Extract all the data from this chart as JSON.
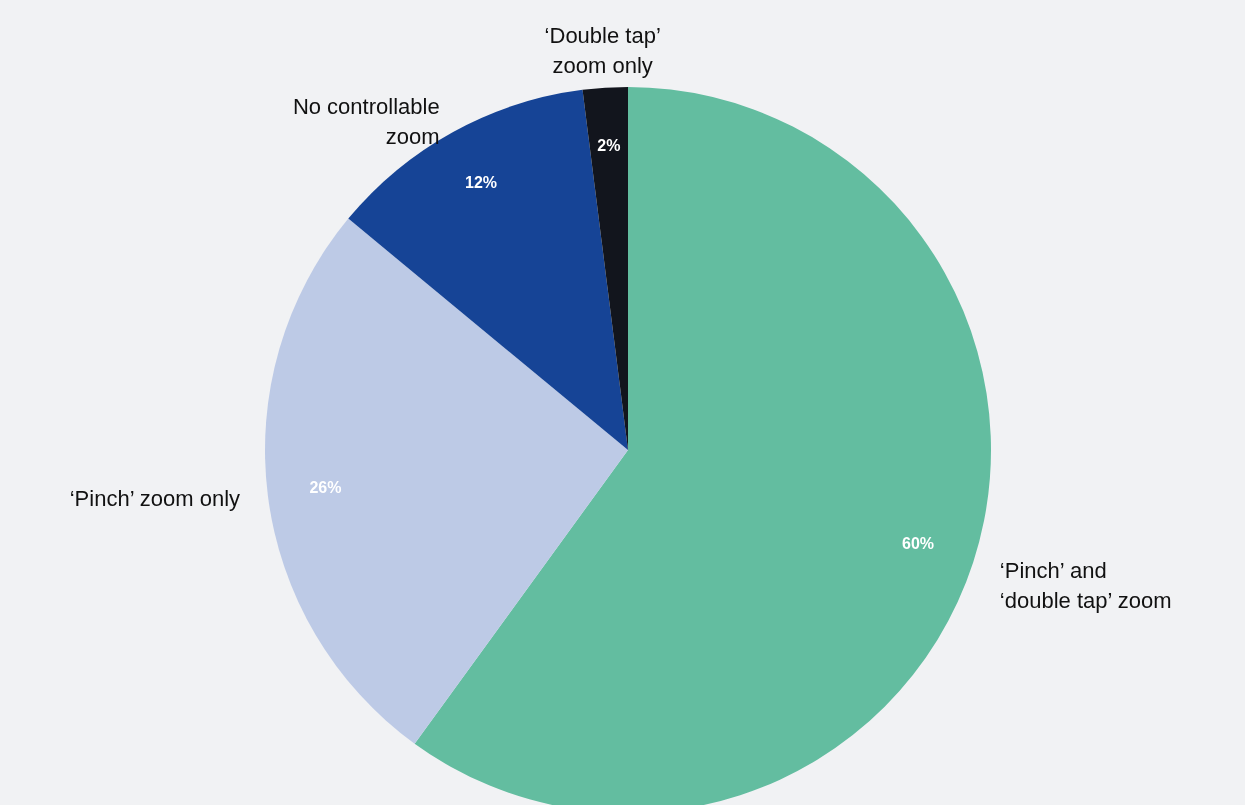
{
  "chart_data": {
    "type": "pie",
    "categories": [
      "‘Pinch’ and ‘double tap’ zoom",
      "‘Pinch’ zoom only",
      "No controllable zoom",
      "‘Double tap’ zoom only"
    ],
    "values": [
      60,
      26,
      12,
      2
    ],
    "value_labels": [
      "60%",
      "26%",
      "12%",
      "2%"
    ],
    "colors": [
      "#63bda0",
      "#bdcae6",
      "#164496",
      "#12151d"
    ]
  }
}
